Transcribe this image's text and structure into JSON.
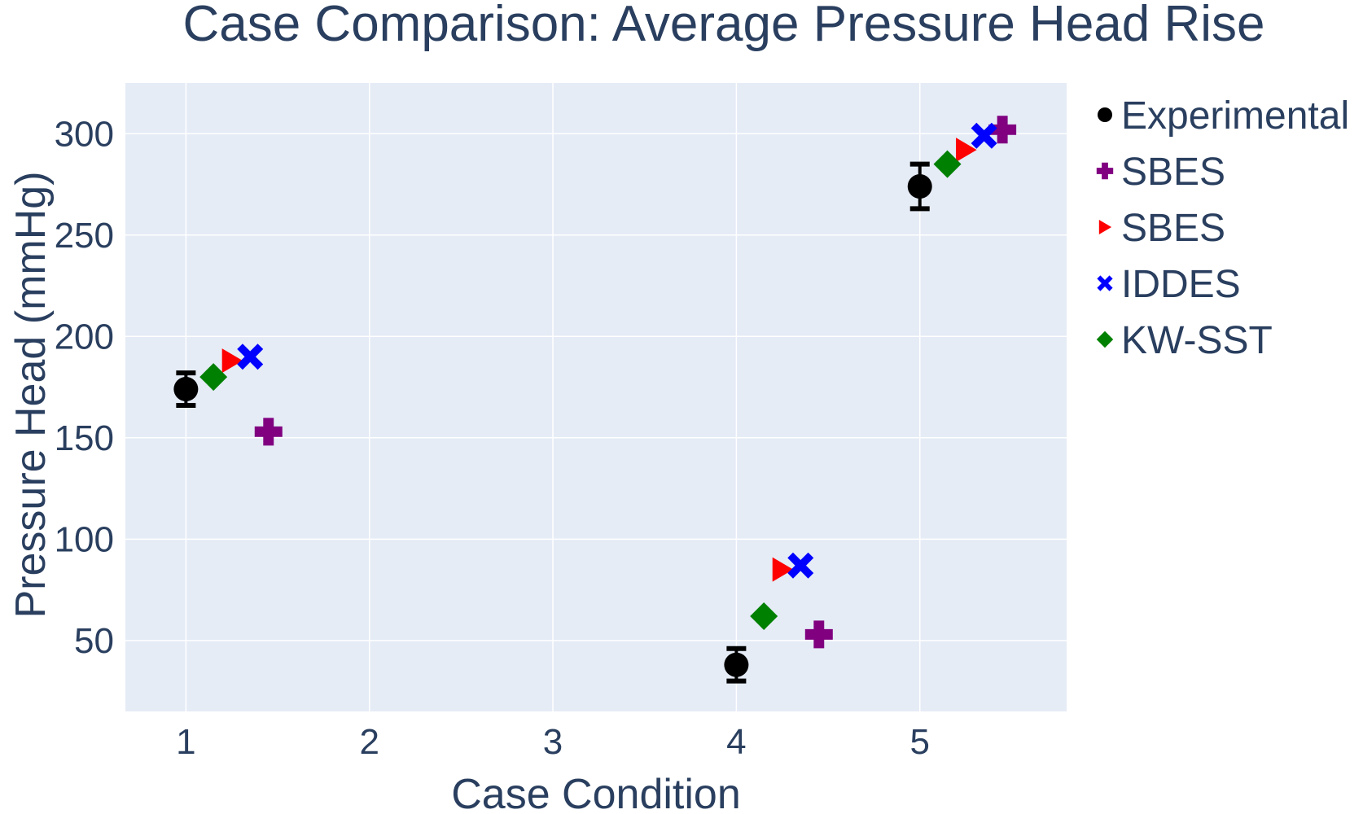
{
  "chart_data": {
    "type": "scatter",
    "title": "Case Comparison: Average Pressure Head Rise",
    "xlabel": "Case Condition",
    "ylabel": "Pressure Head (mmHg)",
    "xlim": [
      0.67,
      5.8
    ],
    "ylim": [
      15,
      325
    ],
    "xticks": [
      1,
      2,
      3,
      4,
      5
    ],
    "yticks": [
      50,
      100,
      150,
      200,
      250,
      300
    ],
    "grid": true,
    "legend_position": "right",
    "series": [
      {
        "name": "Experimental",
        "symbol": "circle",
        "color": "#000000",
        "x": [
          1,
          4,
          5
        ],
        "y": [
          174,
          38,
          274
        ],
        "error": [
          8,
          8,
          11
        ]
      },
      {
        "name": "SBES",
        "symbol": "cross",
        "color": "#800080",
        "x": [
          1.45,
          4.45,
          5.45
        ],
        "y": [
          153,
          53,
          302
        ]
      },
      {
        "name": "SBES",
        "symbol": "triangle-right",
        "color": "#ff0000",
        "x": [
          1.25,
          4.25,
          5.25
        ],
        "y": [
          188,
          85,
          292
        ]
      },
      {
        "name": "IDDES",
        "symbol": "x",
        "color": "#0000ff",
        "x": [
          1.35,
          4.35,
          5.35
        ],
        "y": [
          190,
          87,
          299
        ]
      },
      {
        "name": "KW-SST",
        "symbol": "diamond",
        "color": "#008000",
        "x": [
          1.15,
          4.15,
          5.15
        ],
        "y": [
          180,
          62,
          285
        ]
      }
    ]
  }
}
